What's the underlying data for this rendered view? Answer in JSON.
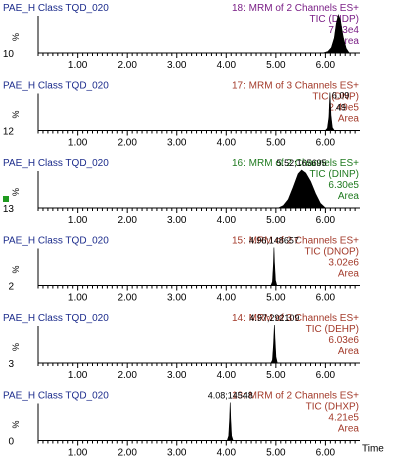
{
  "chart_data": [
    {
      "type": "line",
      "sample": "PAE_H Class TQD_020",
      "function": "18: MRM of 2 Channels ES+",
      "trace": "TIC (DIDP)",
      "intensity": "7.73e4",
      "mode": "Area",
      "ylabel": "%",
      "ymin_label": "10",
      "peak_label": "",
      "color": "#7a1f86",
      "x": [
        5.95,
        6.05,
        6.12,
        6.18,
        6.22,
        6.26,
        6.3,
        6.36,
        6.42,
        6.48
      ],
      "y": [
        0,
        4,
        14,
        40,
        78,
        100,
        88,
        42,
        12,
        0
      ]
    },
    {
      "type": "line",
      "sample": "PAE_H Class TQD_020",
      "function": "17: MRM of 3 Channels ES+",
      "trace": "TIC (DNP)",
      "intensity": "2.49e5",
      "mode": "Area",
      "ylabel": "%",
      "ymin_label": "12",
      "peak_label": "6.09\n49",
      "color": "#a33a2a",
      "x": [
        6.0,
        6.04,
        6.07,
        6.09,
        6.11,
        6.14,
        6.18
      ],
      "y": [
        0,
        6,
        35,
        100,
        40,
        8,
        0
      ]
    },
    {
      "type": "line",
      "sample": "PAE_H Class TQD_020",
      "function": "16: MRM of 2 Channels ES+",
      "trace": "TIC (DINP)",
      "intensity": "6.30e5",
      "mode": "Area",
      "ylabel": "%",
      "ymin_label": "13",
      "peak_label": "5.52;165695",
      "color": "#1f7a1f",
      "x": [
        5.05,
        5.15,
        5.25,
        5.35,
        5.45,
        5.52,
        5.6,
        5.7,
        5.8,
        5.9,
        6.0
      ],
      "y": [
        0,
        6,
        22,
        55,
        90,
        100,
        92,
        70,
        38,
        12,
        0
      ]
    },
    {
      "type": "line",
      "sample": "PAE_H Class TQD_020",
      "function": "15: MRM of 2 Channels ES+",
      "trace": "TIC (DNOP)",
      "intensity": "3.02e6",
      "mode": "Area",
      "ylabel": "%",
      "ymin_label": "2",
      "peak_label": "4.96;148657",
      "color": "#a33a2a",
      "x": [
        4.9,
        4.93,
        4.95,
        4.96,
        4.97,
        4.99,
        5.02
      ],
      "y": [
        0,
        10,
        55,
        100,
        62,
        14,
        0
      ]
    },
    {
      "type": "line",
      "sample": "PAE_H Class TQD_020",
      "function": "14: MRM of 3 Channels ES+",
      "trace": "TIC (DEHP)",
      "intensity": "6.03e6",
      "mode": "Area",
      "ylabel": "%",
      "ymin_label": "3",
      "peak_label": "4.97;292109",
      "color": "#a33a2a",
      "x": [
        4.9,
        4.93,
        4.95,
        4.97,
        4.98,
        5.0,
        5.03
      ],
      "y": [
        0,
        8,
        45,
        100,
        66,
        16,
        0
      ]
    },
    {
      "type": "line",
      "sample": "PAE_H Class TQD_020",
      "function": "13: MRM of 2 Channels ES+",
      "trace": "TIC (DHXP)",
      "intensity": "4.21e5",
      "mode": "Area",
      "ylabel": "%",
      "ymin_label": "0",
      "peak_label": "4.08;14548",
      "color": "#a33a2a",
      "x": [
        4.02,
        4.05,
        4.07,
        4.08,
        4.09,
        4.11,
        4.14
      ],
      "y": [
        0,
        12,
        60,
        100,
        58,
        12,
        0
      ]
    }
  ],
  "xaxis": {
    "ticks": [
      "1.00",
      "2.00",
      "3.00",
      "4.00",
      "5.00",
      "6.00"
    ],
    "tick_values": [
      1,
      2,
      3,
      4,
      5,
      6
    ],
    "xlim": [
      0.2,
      6.9
    ],
    "xlabel": "Time"
  },
  "colors": {
    "label_blue": "#1c2c8c",
    "axis": "#000000",
    "marker_green": "#1f9a1f"
  }
}
